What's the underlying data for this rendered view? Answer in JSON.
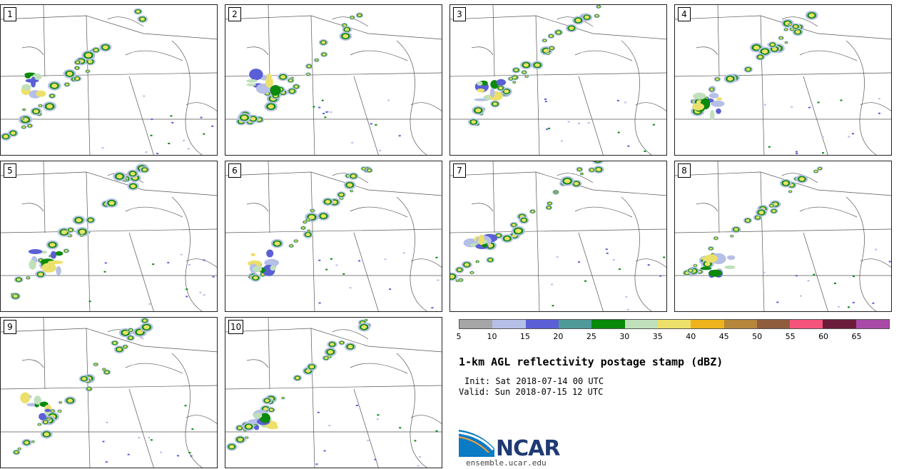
{
  "panels": [
    {
      "label": "1"
    },
    {
      "label": "2"
    },
    {
      "label": "3"
    },
    {
      "label": "4"
    },
    {
      "label": "5"
    },
    {
      "label": "6"
    },
    {
      "label": "7"
    },
    {
      "label": "8"
    },
    {
      "label": "9"
    },
    {
      "label": "10"
    }
  ],
  "colorbar": {
    "colors": [
      "#a6a6a6",
      "#b5bfe8",
      "#5b5fd6",
      "#4f9a99",
      "#0a8a0a",
      "#bfe0bb",
      "#ece06b",
      "#efb41d",
      "#b5863b",
      "#8f5c3d",
      "#f5537b",
      "#6c1c3b",
      "#a94aa8"
    ],
    "tick_labels": [
      "5",
      "10",
      "15",
      "20",
      "25",
      "30",
      "35",
      "40",
      "45",
      "50",
      "55",
      "60",
      "65"
    ]
  },
  "title": "1-km AGL reflectivity postage stamp (dBZ)",
  "init_line": "Init: Sat 2018-07-14 00 UTC",
  "valid_line": "Valid: Sun 2018-07-15 12 UTC",
  "logo": {
    "text": "NCAR",
    "icon": "ncar-logo-icon",
    "brand_color": "#1f3a73",
    "accent_color": "#0a7bc5"
  },
  "website": "ensemble.ucar.edu"
}
